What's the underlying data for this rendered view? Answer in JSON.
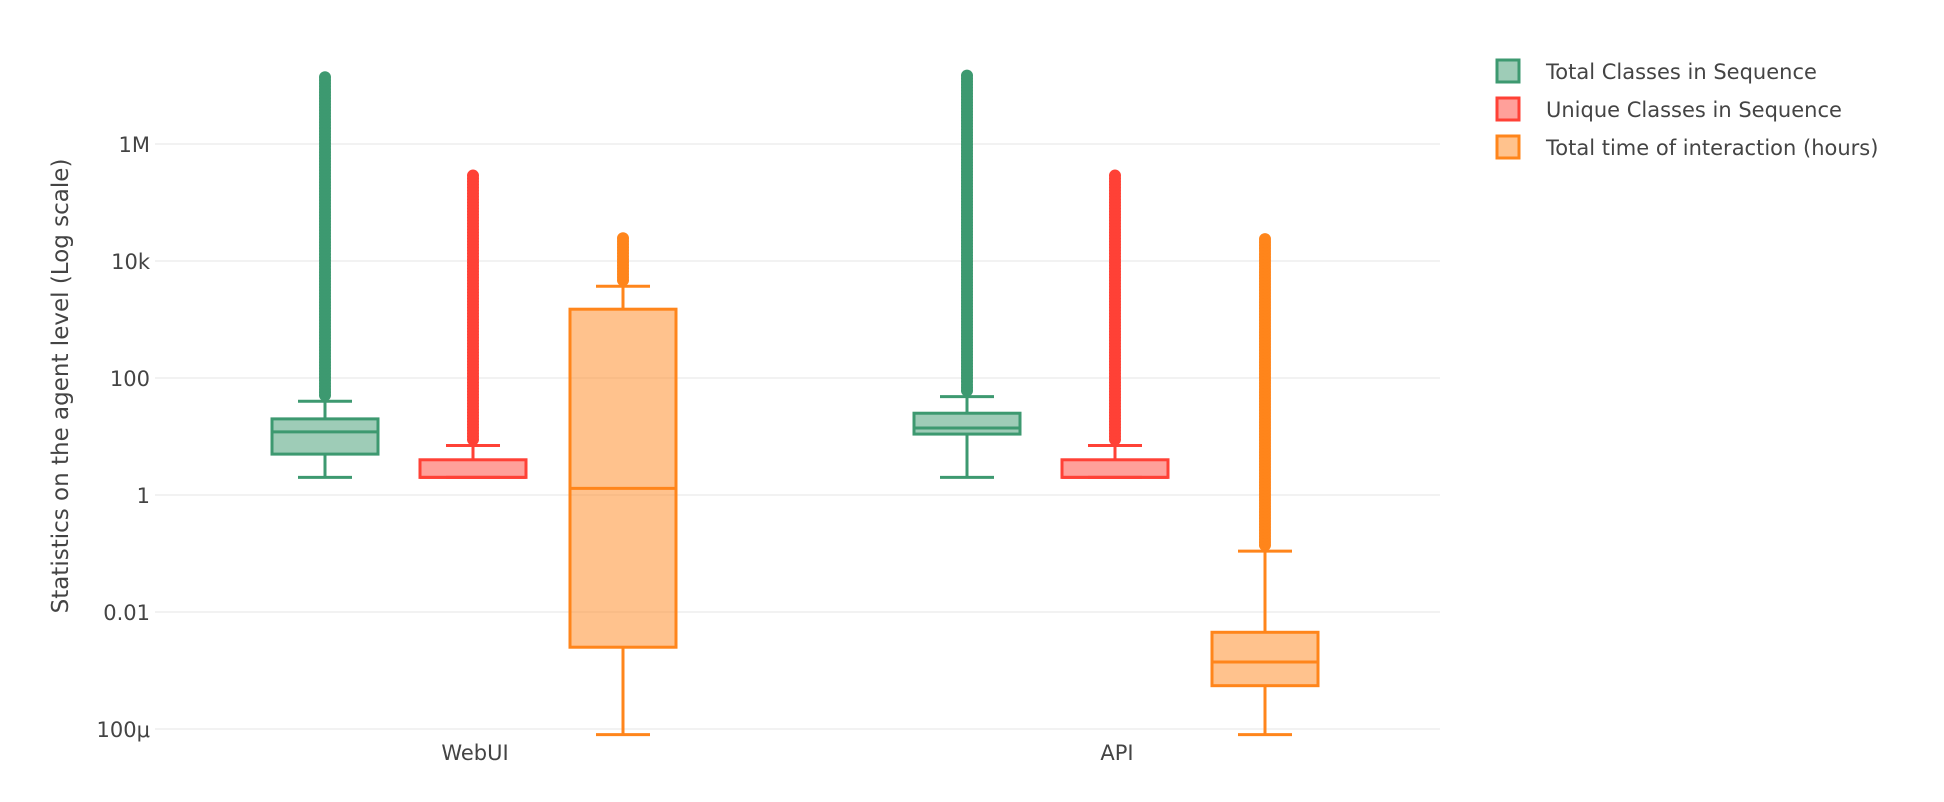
{
  "chart_data": {
    "type": "box",
    "title": "",
    "xlabel": "",
    "ylabel": "Statistics on the agent level (Log scale)",
    "y_scale": "log",
    "y_tick_values": [
      0.0001,
      0.01,
      1,
      100,
      10000,
      1000000
    ],
    "y_tick_labels": [
      "100μ",
      "0.01",
      "1",
      "100",
      "10k",
      "1M"
    ],
    "ylim": [
      0.0001,
      10000000
    ],
    "grid": true,
    "legend_position": "top-right",
    "categories": [
      "WebUI",
      "API"
    ],
    "series": [
      {
        "name": "Total Classes in Sequence",
        "color": "#3d9970",
        "boxes": [
          {
            "category": "WebUI",
            "lower_fence": 2,
            "q1": 5,
            "median": 12,
            "q3": 20,
            "upper_fence": 40,
            "outliers_from": 40,
            "outliers_to": 15000000
          },
          {
            "category": "API",
            "lower_fence": 2,
            "q1": 11,
            "median": 14,
            "q3": 25,
            "upper_fence": 48,
            "outliers_from": 48,
            "outliers_to": 15000000
          }
        ]
      },
      {
        "name": "Unique Classes in Sequence",
        "color": "#ff4136",
        "boxes": [
          {
            "category": "WebUI",
            "lower_fence": 2,
            "q1": 2,
            "median": 2,
            "q3": 4,
            "upper_fence": 7,
            "outliers_from": 7,
            "outliers_to": 300000
          },
          {
            "category": "API",
            "lower_fence": 2,
            "q1": 2,
            "median": 2,
            "q3": 4,
            "upper_fence": 7,
            "outliers_from": 7,
            "outliers_to": 300000
          }
        ]
      },
      {
        "name": "Total time of interaction (hours)",
        "color": "#ff851b",
        "boxes": [
          {
            "category": "WebUI",
            "lower_fence": 8e-05,
            "q1": 0.0025,
            "median": 1.3,
            "q3": 1500,
            "upper_fence": 3700,
            "outliers_from": 3700,
            "outliers_to": 25000
          },
          {
            "category": "API",
            "lower_fence": 8e-05,
            "q1": 0.00055,
            "median": 0.0014,
            "q3": 0.0045,
            "upper_fence": 0.11,
            "outliers_from": 0.11,
            "outliers_to": 25000
          }
        ]
      }
    ]
  }
}
